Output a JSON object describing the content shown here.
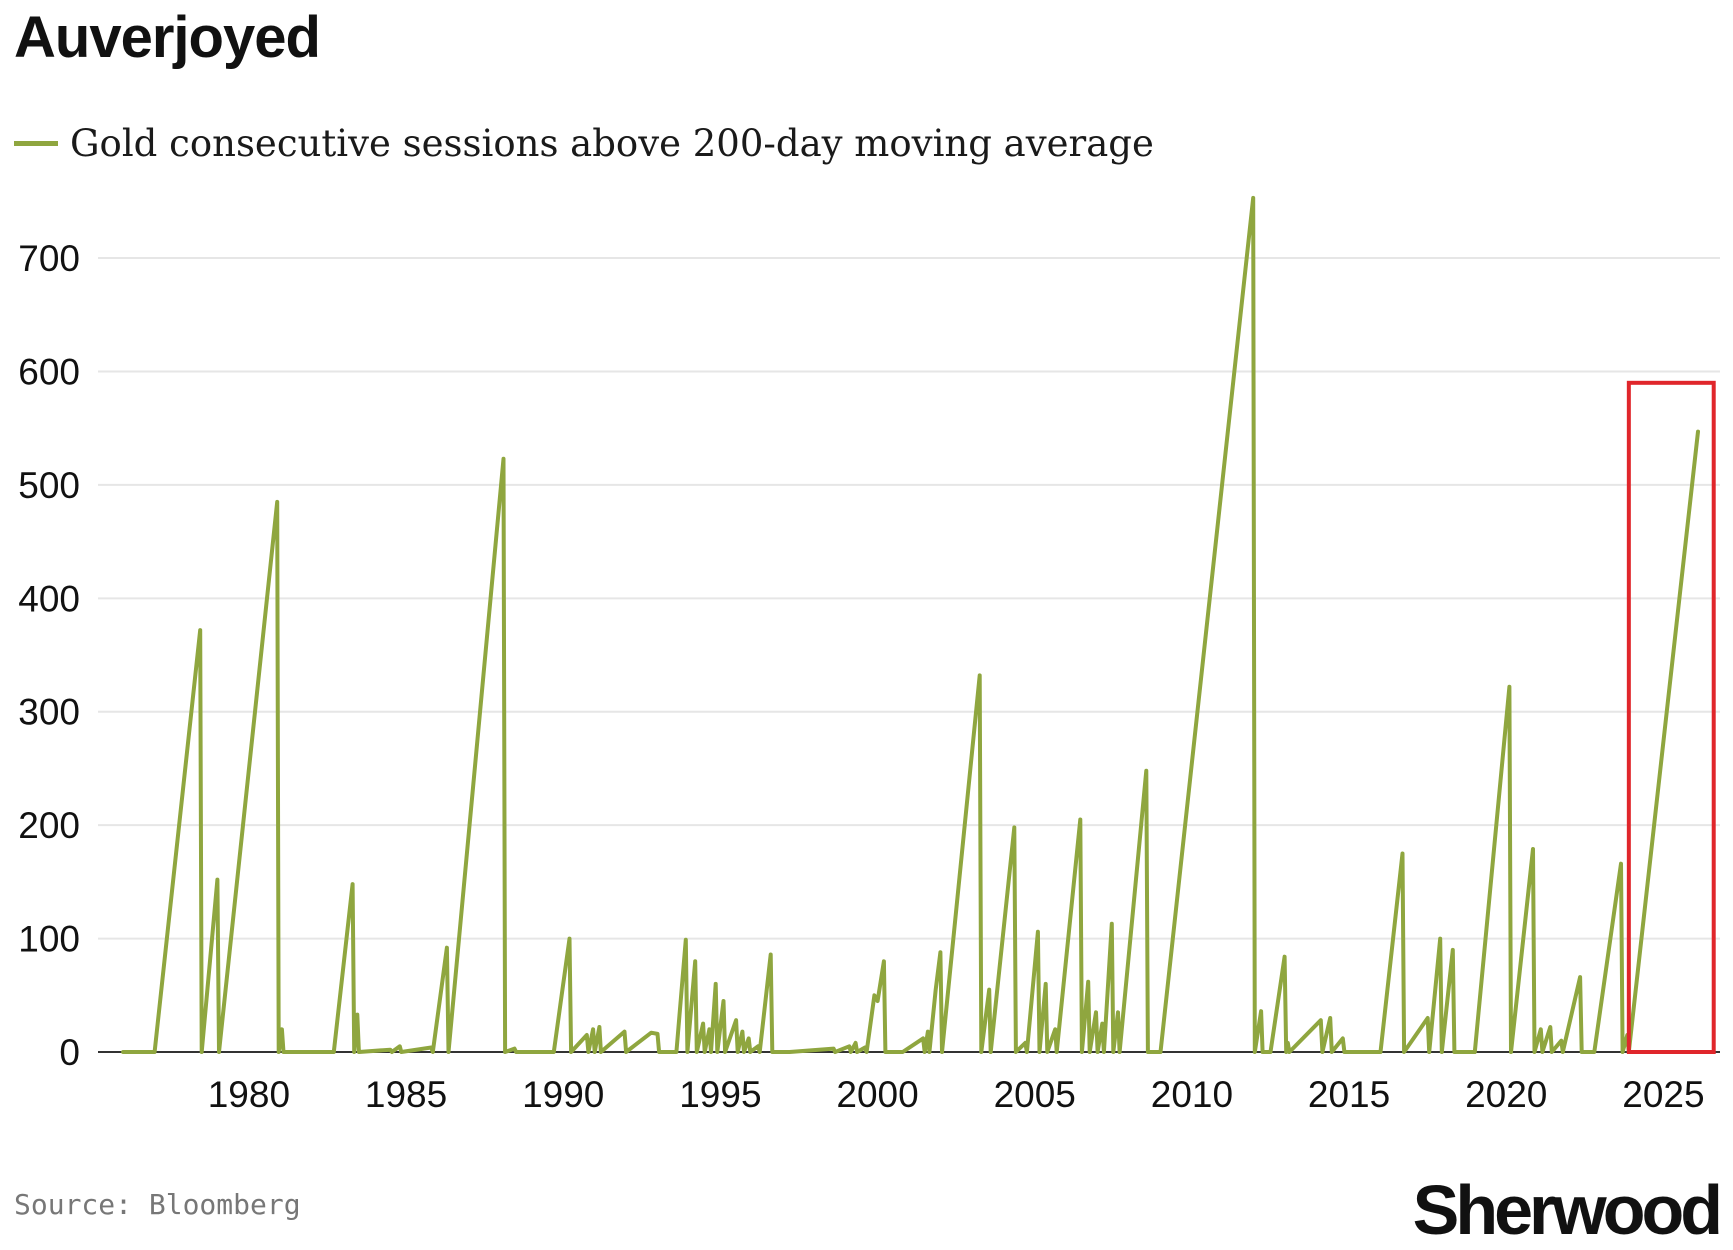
{
  "title": "Auverjoyed",
  "legend": {
    "label": "Gold consecutive sessions above 200-day moving average"
  },
  "source": "Source: Bloomberg",
  "brand": "Sherwood",
  "colors": {
    "line": "#8fa63f",
    "grid": "#e6e6e6",
    "axis": "#333333",
    "highlight": "#e0262b"
  },
  "chart_data": {
    "type": "line",
    "title": "Auverjoyed",
    "xlabel": "",
    "ylabel": "",
    "xlim": [
      1975.2,
      2026.8
    ],
    "ylim": [
      0,
      760
    ],
    "yticks": [
      0,
      100,
      200,
      300,
      400,
      500,
      600,
      700
    ],
    "xticks": [
      1980,
      1985,
      1990,
      1995,
      2000,
      2005,
      2010,
      2015,
      2020,
      2025
    ],
    "grid": "horizontal",
    "legend_position": "top-left",
    "highlight": {
      "x_range": [
        2023.9,
        2026.6
      ],
      "y_range": [
        0,
        590
      ]
    },
    "series": [
      {
        "name": "Gold consecutive sessions above 200-day moving average",
        "points": [
          [
            1976.0,
            0
          ],
          [
            1977.0,
            0
          ],
          [
            1978.45,
            372
          ],
          [
            1978.5,
            0
          ],
          [
            1979.0,
            152
          ],
          [
            1979.05,
            0
          ],
          [
            1980.9,
            485
          ],
          [
            1980.95,
            0
          ],
          [
            1981.05,
            20
          ],
          [
            1981.1,
            0
          ],
          [
            1982.7,
            0
          ],
          [
            1983.3,
            148
          ],
          [
            1983.35,
            0
          ],
          [
            1983.45,
            33
          ],
          [
            1983.5,
            0
          ],
          [
            1984.5,
            2
          ],
          [
            1984.55,
            0
          ],
          [
            1984.8,
            5
          ],
          [
            1984.85,
            0
          ],
          [
            1985.8,
            4
          ],
          [
            1985.85,
            0
          ],
          [
            1986.3,
            92
          ],
          [
            1986.35,
            0
          ],
          [
            1988.1,
            523
          ],
          [
            1988.15,
            0
          ],
          [
            1988.45,
            3
          ],
          [
            1988.5,
            0
          ],
          [
            1989.7,
            0
          ],
          [
            1990.2,
            100
          ],
          [
            1990.25,
            0
          ],
          [
            1990.75,
            15
          ],
          [
            1990.8,
            0
          ],
          [
            1990.95,
            20
          ],
          [
            1991.0,
            0
          ],
          [
            1991.15,
            22
          ],
          [
            1991.2,
            0
          ],
          [
            1991.95,
            18
          ],
          [
            1992.0,
            0
          ],
          [
            1992.8,
            17
          ],
          [
            1993.0,
            16
          ],
          [
            1993.05,
            0
          ],
          [
            1993.6,
            0
          ],
          [
            1993.9,
            99
          ],
          [
            1993.95,
            0
          ],
          [
            1994.2,
            80
          ],
          [
            1994.25,
            0
          ],
          [
            1994.45,
            25
          ],
          [
            1994.5,
            0
          ],
          [
            1994.65,
            20
          ],
          [
            1994.7,
            0
          ],
          [
            1994.85,
            60
          ],
          [
            1994.9,
            0
          ],
          [
            1995.1,
            45
          ],
          [
            1995.15,
            0
          ],
          [
            1995.5,
            28
          ],
          [
            1995.55,
            0
          ],
          [
            1995.7,
            18
          ],
          [
            1995.75,
            0
          ],
          [
            1995.9,
            12
          ],
          [
            1995.95,
            0
          ],
          [
            1996.2,
            5
          ],
          [
            1996.25,
            0
          ],
          [
            1996.6,
            86
          ],
          [
            1996.65,
            0
          ],
          [
            1997.2,
            0
          ],
          [
            1998.6,
            3
          ],
          [
            1998.65,
            0
          ],
          [
            1999.1,
            5
          ],
          [
            1999.15,
            0
          ],
          [
            1999.3,
            8
          ],
          [
            1999.35,
            0
          ],
          [
            1999.6,
            4
          ],
          [
            1999.65,
            0
          ],
          [
            1999.9,
            50
          ],
          [
            2000.0,
            45
          ],
          [
            2000.2,
            80
          ],
          [
            2000.25,
            0
          ],
          [
            2000.8,
            0
          ],
          [
            2001.45,
            12
          ],
          [
            2001.5,
            0
          ],
          [
            2001.6,
            18
          ],
          [
            2001.65,
            0
          ],
          [
            2001.85,
            55
          ],
          [
            2002.0,
            88
          ],
          [
            2002.05,
            0
          ],
          [
            2003.25,
            332
          ],
          [
            2003.3,
            0
          ],
          [
            2003.55,
            55
          ],
          [
            2003.6,
            0
          ],
          [
            2004.35,
            198
          ],
          [
            2004.4,
            0
          ],
          [
            2004.7,
            8
          ],
          [
            2004.75,
            0
          ],
          [
            2005.1,
            106
          ],
          [
            2005.15,
            0
          ],
          [
            2005.35,
            60
          ],
          [
            2005.4,
            0
          ],
          [
            2005.65,
            20
          ],
          [
            2005.7,
            0
          ],
          [
            2006.45,
            205
          ],
          [
            2006.5,
            0
          ],
          [
            2006.7,
            62
          ],
          [
            2006.75,
            0
          ],
          [
            2006.95,
            35
          ],
          [
            2007.0,
            0
          ],
          [
            2007.15,
            25
          ],
          [
            2007.2,
            0
          ],
          [
            2007.45,
            113
          ],
          [
            2007.5,
            0
          ],
          [
            2007.65,
            35
          ],
          [
            2007.7,
            0
          ],
          [
            2008.55,
            248
          ],
          [
            2008.6,
            0
          ],
          [
            2009.0,
            0
          ],
          [
            2011.95,
            753
          ],
          [
            2012.0,
            0
          ],
          [
            2012.2,
            36
          ],
          [
            2012.25,
            0
          ],
          [
            2012.5,
            0
          ],
          [
            2012.95,
            84
          ],
          [
            2013.0,
            0
          ],
          [
            2013.05,
            8
          ],
          [
            2013.1,
            0
          ],
          [
            2014.1,
            28
          ],
          [
            2014.15,
            0
          ],
          [
            2014.4,
            30
          ],
          [
            2014.45,
            0
          ],
          [
            2014.8,
            12
          ],
          [
            2014.85,
            0
          ],
          [
            2015.2,
            0
          ],
          [
            2016.0,
            0
          ],
          [
            2016.7,
            175
          ],
          [
            2016.75,
            0
          ],
          [
            2017.5,
            30
          ],
          [
            2017.55,
            0
          ],
          [
            2017.9,
            100
          ],
          [
            2017.95,
            0
          ],
          [
            2018.3,
            90
          ],
          [
            2018.35,
            0
          ],
          [
            2018.5,
            0
          ],
          [
            2019.0,
            0
          ],
          [
            2020.1,
            322
          ],
          [
            2020.15,
            0
          ],
          [
            2020.85,
            179
          ],
          [
            2020.9,
            0
          ],
          [
            2021.1,
            20
          ],
          [
            2021.15,
            0
          ],
          [
            2021.4,
            22
          ],
          [
            2021.45,
            0
          ],
          [
            2021.75,
            10
          ],
          [
            2021.8,
            0
          ],
          [
            2022.35,
            66
          ],
          [
            2022.4,
            0
          ],
          [
            2022.8,
            0
          ],
          [
            2023.65,
            166
          ],
          [
            2023.7,
            0
          ],
          [
            2023.85,
            15
          ],
          [
            2023.9,
            0
          ],
          [
            2026.1,
            547
          ]
        ]
      }
    ]
  }
}
